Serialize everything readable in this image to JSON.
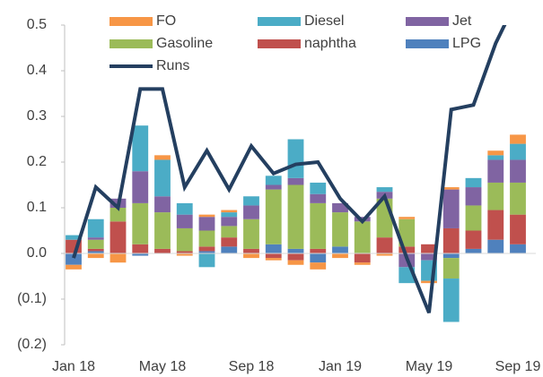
{
  "chart_data": {
    "type": "stacked_bar_line",
    "categories": [
      "Jan 18",
      null,
      null,
      null,
      "May 18",
      null,
      null,
      null,
      "Sep 18",
      null,
      null,
      null,
      "Jan 19",
      null,
      null,
      null,
      "May 19",
      null,
      null,
      null,
      "Sep 19"
    ],
    "series": [
      {
        "name": "LPG",
        "color": "#4f81bd",
        "values": [
          -0.025,
          0.005,
          0,
          -0.005,
          0,
          0,
          0.005,
          0.015,
          0,
          0.02,
          0.01,
          -0.02,
          0.015,
          0,
          0,
          0,
          0,
          -0.01,
          0.01,
          0.03,
          0.02
        ]
      },
      {
        "name": "naphtha",
        "color": "#c0504d",
        "values": [
          0.03,
          0.005,
          0.07,
          0.02,
          0.01,
          0.005,
          0.01,
          0.02,
          0.01,
          -0.01,
          -0.015,
          0.01,
          0,
          -0.02,
          0.035,
          0.015,
          0.02,
          0.055,
          0.04,
          0.065,
          0.065
        ]
      },
      {
        "name": "Gasoline",
        "color": "#9bbb59",
        "values": [
          0,
          0.02,
          0.03,
          0.09,
          0.08,
          0.05,
          0.035,
          0.025,
          0.065,
          0.12,
          0.14,
          0.1,
          0.075,
          0.07,
          0.085,
          0.06,
          0,
          -0.045,
          0.055,
          0.06,
          0.07
        ]
      },
      {
        "name": "Jet",
        "color": "#8064a2",
        "values": [
          0,
          0.005,
          0.02,
          0.07,
          0.035,
          0.03,
          0.03,
          0.02,
          0.03,
          0.01,
          0.015,
          0.02,
          0.02,
          0.01,
          0.015,
          -0.03,
          -0.015,
          0.085,
          0.04,
          0.05,
          0.05
        ]
      },
      {
        "name": "Diesel",
        "color": "#4bacc6",
        "values": [
          0.01,
          0.04,
          0,
          0.1,
          0.08,
          0.025,
          -0.03,
          0.01,
          0.02,
          0.02,
          0.085,
          0.025,
          0,
          0,
          0.01,
          -0.035,
          -0.045,
          -0.095,
          0.02,
          0.01,
          0.035
        ]
      },
      {
        "name": "FO",
        "color": "#f79646",
        "values": [
          -0.01,
          -0.01,
          -0.02,
          0,
          0.01,
          -0.005,
          0.005,
          0.005,
          -0.01,
          -0.005,
          -0.01,
          -0.015,
          -0.01,
          -0.005,
          -0.005,
          0.005,
          -0.005,
          0.005,
          0,
          0.01,
          0.02
        ]
      },
      {
        "name": "Runs",
        "color": "#243f60",
        "kind": "line",
        "values": [
          -0.01,
          0.145,
          0.1,
          0.36,
          0.36,
          0.145,
          0.225,
          0.14,
          0.235,
          0.175,
          0.195,
          0.2,
          0.12,
          0.07,
          0.125,
          -0.01,
          -0.13,
          0.315,
          0.325,
          0.46,
          0.56
        ]
      }
    ],
    "ylim": [
      -0.2,
      0.5
    ],
    "yticks": [
      {
        "value": -0.2,
        "label": "(0.2)"
      },
      {
        "value": -0.1,
        "label": "(0.1)"
      },
      {
        "value": 0,
        "label": "0.0"
      },
      0.1,
      0.2,
      0.3,
      0.4,
      0.5
    ]
  }
}
